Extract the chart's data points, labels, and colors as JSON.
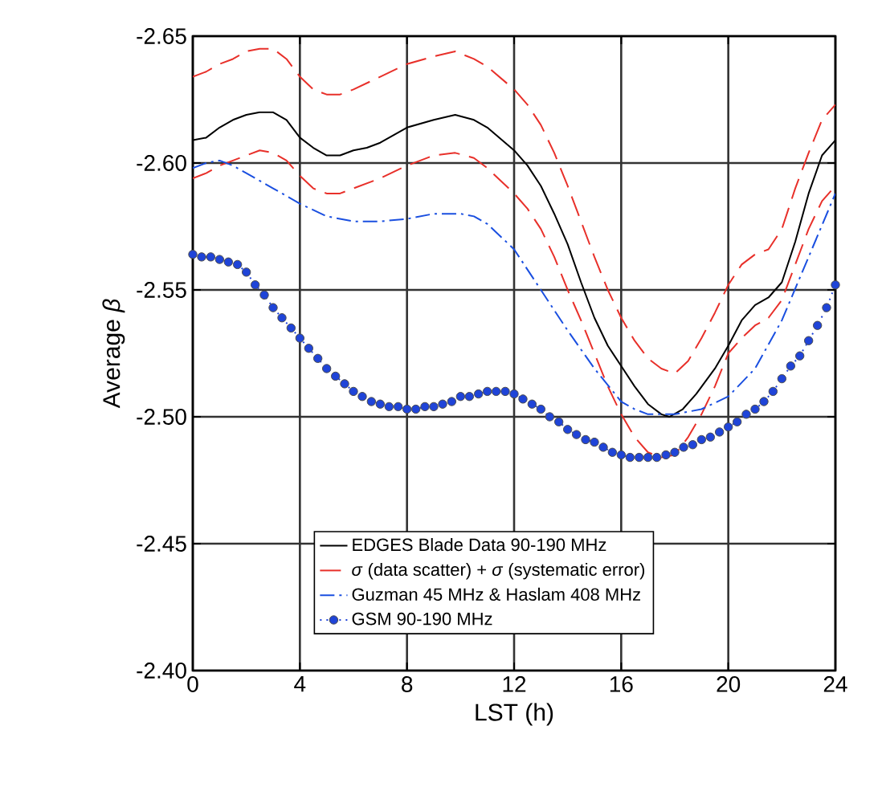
{
  "chart_data": {
    "type": "line",
    "xlabel": "LST (h)",
    "ylabel": "Average *β*",
    "xlim": [
      0,
      24
    ],
    "xticks": [
      0,
      4,
      8,
      12,
      16,
      20,
      24
    ],
    "ylim": [
      -2.4,
      -2.65
    ],
    "yticks": [
      {
        "value": -2.65,
        "label": "-2.65"
      },
      {
        "value": -2.6,
        "label": "-2.60"
      },
      {
        "value": -2.55,
        "label": "-2.55"
      },
      {
        "value": -2.5,
        "label": "-2.50"
      },
      {
        "value": -2.45,
        "label": "-2.45"
      },
      {
        "value": -2.4,
        "label": "-2.40"
      }
    ],
    "grid": true,
    "legend": "bottom",
    "series": [
      {
        "name": "EDGES Blade Data 90-190 MHz",
        "color": "#000000",
        "line_style": "solid",
        "marker": "none",
        "x": [
          0,
          0.5,
          1,
          1.5,
          2,
          2.5,
          3,
          3.5,
          4,
          4.5,
          5,
          5.5,
          6,
          6.5,
          7,
          8,
          9,
          9.8,
          10.5,
          11,
          12,
          12.5,
          13,
          13.5,
          14,
          14.5,
          15,
          15.5,
          16,
          16.5,
          17,
          17.5,
          17.8,
          18.3,
          18.8,
          19.5,
          20,
          20.5,
          21,
          21.5,
          22,
          22.5,
          23,
          23.5,
          24
        ],
        "values": [
          -2.609,
          -2.61,
          -2.614,
          -2.617,
          -2.619,
          -2.62,
          -2.62,
          -2.617,
          -2.61,
          -2.606,
          -2.603,
          -2.603,
          -2.605,
          -2.606,
          -2.608,
          -2.614,
          -2.617,
          -2.619,
          -2.617,
          -2.614,
          -2.605,
          -2.599,
          -2.591,
          -2.58,
          -2.568,
          -2.553,
          -2.539,
          -2.528,
          -2.52,
          -2.512,
          -2.505,
          -2.501,
          -2.5,
          -2.503,
          -2.509,
          -2.519,
          -2.528,
          -2.538,
          -2.544,
          -2.547,
          -2.553,
          -2.569,
          -2.588,
          -2.603,
          -2.609
        ]
      },
      {
        "name": "*σ* (data scatter) + *σ* (systematic error)",
        "color": "#e8302a",
        "line_style": "dashed",
        "marker": "none",
        "x": [
          0,
          0.5,
          1,
          1.5,
          2,
          2.5,
          3,
          3.5,
          4,
          4.5,
          5,
          5.5,
          6,
          7,
          8,
          9,
          9.8,
          10.5,
          11,
          12,
          12.5,
          13,
          13.5,
          14,
          14.5,
          15,
          15.5,
          16,
          16.5,
          17,
          17.5,
          18,
          18.5,
          19,
          19.5,
          20,
          20.5,
          21,
          21.5,
          22,
          22.5,
          23,
          23.5,
          24
        ],
        "values": [
          -2.634,
          -2.636,
          -2.639,
          -2.641,
          -2.644,
          -2.645,
          -2.645,
          -2.641,
          -2.634,
          -2.629,
          -2.627,
          -2.627,
          -2.629,
          -2.634,
          -2.639,
          -2.642,
          -2.644,
          -2.641,
          -2.638,
          -2.629,
          -2.623,
          -2.615,
          -2.604,
          -2.591,
          -2.577,
          -2.563,
          -2.55,
          -2.539,
          -2.53,
          -2.523,
          -2.519,
          -2.517,
          -2.522,
          -2.531,
          -2.541,
          -2.552,
          -2.56,
          -2.564,
          -2.566,
          -2.574,
          -2.59,
          -2.604,
          -2.617,
          -2.623
        ]
      },
      {
        "color": "#e8302a",
        "line_style": "dashed",
        "marker": "none",
        "x": [
          0,
          0.5,
          1,
          2,
          2.5,
          3,
          3.5,
          4,
          4.5,
          5,
          5.5,
          6,
          7,
          8,
          9,
          9.8,
          10.5,
          11,
          12,
          12.5,
          13,
          13.5,
          14,
          14.5,
          15,
          15.5,
          16,
          16.5,
          17,
          17.5,
          18,
          18.5,
          19,
          19.5,
          20,
          20.5,
          21,
          21.5,
          22,
          22.5,
          23,
          23.5,
          24
        ],
        "values": [
          -2.594,
          -2.596,
          -2.599,
          -2.603,
          -2.605,
          -2.604,
          -2.601,
          -2.595,
          -2.59,
          -2.588,
          -2.588,
          -2.59,
          -2.594,
          -2.599,
          -2.603,
          -2.604,
          -2.602,
          -2.598,
          -2.588,
          -2.582,
          -2.574,
          -2.563,
          -2.55,
          -2.538,
          -2.525,
          -2.512,
          -2.501,
          -2.492,
          -2.486,
          -2.484,
          -2.485,
          -2.492,
          -2.501,
          -2.512,
          -2.525,
          -2.531,
          -2.536,
          -2.539,
          -2.546,
          -2.56,
          -2.574,
          -2.585,
          -2.591
        ]
      },
      {
        "name": "Guzman 45 MHz & Haslam 408 MHz",
        "color": "#1a4fe0",
        "line_style": "dashdot",
        "marker": "none",
        "x": [
          0,
          0.5,
          1,
          1.5,
          2,
          3,
          4,
          5,
          6,
          7,
          8,
          9,
          10,
          10.5,
          11,
          12,
          13,
          14,
          15,
          16,
          16.5,
          17,
          18,
          19,
          20,
          21,
          22,
          23,
          24
        ],
        "values": [
          -2.598,
          -2.6,
          -2.601,
          -2.599,
          -2.596,
          -2.59,
          -2.584,
          -2.579,
          -2.577,
          -2.577,
          -2.578,
          -2.58,
          -2.58,
          -2.579,
          -2.576,
          -2.566,
          -2.55,
          -2.534,
          -2.519,
          -2.506,
          -2.503,
          -2.501,
          -2.501,
          -2.503,
          -2.508,
          -2.519,
          -2.538,
          -2.563,
          -2.588
        ]
      },
      {
        "name": "GSM 90-190 MHz",
        "color": "#1f44d8",
        "line_style": "dotted",
        "marker": "circle",
        "x": [
          0,
          0.33,
          0.67,
          1,
          1.33,
          1.67,
          2,
          2.33,
          2.67,
          3,
          3.33,
          3.67,
          4,
          4.33,
          4.67,
          5,
          5.33,
          5.67,
          6,
          6.33,
          6.67,
          7,
          7.33,
          7.67,
          8,
          8.33,
          8.67,
          9,
          9.33,
          9.67,
          10,
          10.33,
          10.67,
          11,
          11.33,
          11.67,
          12,
          12.33,
          12.67,
          13,
          13.33,
          13.67,
          14,
          14.33,
          14.67,
          15,
          15.33,
          15.67,
          16,
          16.33,
          16.67,
          17,
          17.33,
          17.67,
          18,
          18.33,
          18.67,
          19,
          19.33,
          19.67,
          20,
          20.33,
          20.67,
          21,
          21.33,
          21.67,
          22,
          22.33,
          22.67,
          23,
          23.33,
          23.67,
          24
        ],
        "values": [
          -2.564,
          -2.563,
          -2.563,
          -2.562,
          -2.561,
          -2.56,
          -2.557,
          -2.552,
          -2.548,
          -2.543,
          -2.539,
          -2.535,
          -2.531,
          -2.527,
          -2.523,
          -2.519,
          -2.516,
          -2.513,
          -2.51,
          -2.508,
          -2.506,
          -2.505,
          -2.504,
          -2.504,
          -2.503,
          -2.503,
          -2.504,
          -2.504,
          -2.505,
          -2.506,
          -2.508,
          -2.508,
          -2.509,
          -2.51,
          -2.51,
          -2.51,
          -2.509,
          -2.507,
          -2.505,
          -2.503,
          -2.5,
          -2.498,
          -2.495,
          -2.493,
          -2.491,
          -2.49,
          -2.488,
          -2.486,
          -2.485,
          -2.484,
          -2.484,
          -2.484,
          -2.484,
          -2.485,
          -2.486,
          -2.488,
          -2.489,
          -2.491,
          -2.492,
          -2.494,
          -2.496,
          -2.498,
          -2.501,
          -2.503,
          -2.506,
          -2.51,
          -2.515,
          -2.52,
          -2.524,
          -2.53,
          -2.536,
          -2.543,
          -2.552
        ]
      }
    ]
  }
}
